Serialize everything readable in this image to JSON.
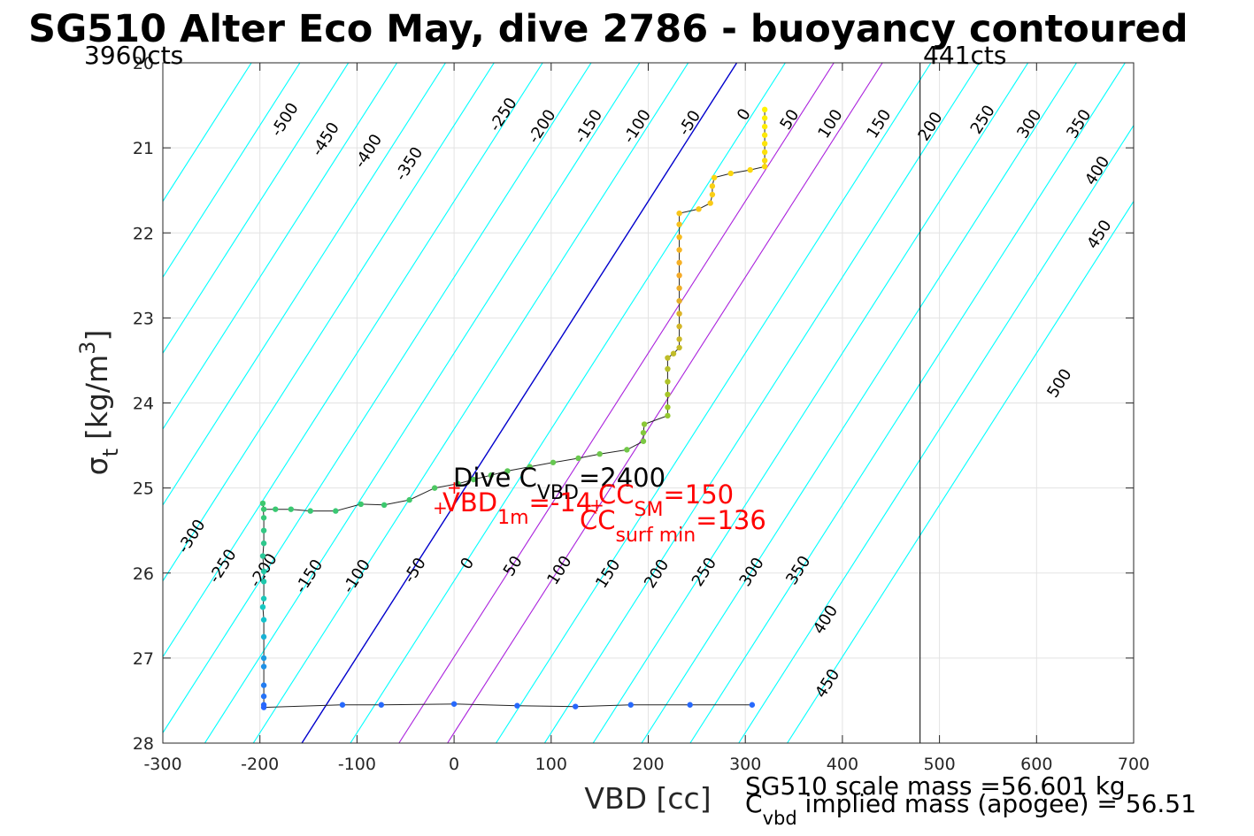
{
  "chart_data": {
    "type": "scatter",
    "title": "SG510 Alter Eco May, dive 2786 - buoyancy contoured",
    "xlabel": "VBD [cc]",
    "ylabel": {
      "sigma": "σ",
      "sub": "t",
      "main": "[kg/m",
      "sup": "3",
      "close": "]"
    },
    "xlim": [
      -300,
      700
    ],
    "ylim": [
      20,
      28
    ],
    "y_reversed": true,
    "grid": true,
    "x_ticks": [
      -300,
      -200,
      -100,
      0,
      100,
      200,
      300,
      400,
      500,
      600,
      700
    ],
    "y_ticks": [
      20,
      21,
      22,
      23,
      24,
      25,
      26,
      27,
      28
    ],
    "counts": {
      "left": "3960cts",
      "right": "441cts",
      "vline_x": 480
    },
    "contours": {
      "slope_cc_per_unit": -56,
      "ref_sigma": 25.2,
      "x_at_ref_zero": 0,
      "spacing": 50,
      "levels": [
        -500,
        -450,
        -400,
        -350,
        -300,
        -250,
        -200,
        -150,
        -100,
        -50,
        0,
        50,
        100,
        150,
        200,
        250,
        300,
        350,
        400,
        450,
        500
      ],
      "colors": {
        "normal": "#00ffff",
        "zero": "#0000cc",
        "sm": "#aa22dd"
      },
      "sm_levels": [
        100,
        150
      ]
    },
    "contour_labels_upper": [
      {
        "text": "-500",
        "x": -170,
        "y": 20.7
      },
      {
        "text": "-450",
        "x": -128,
        "y": 20.93
      },
      {
        "text": "-400",
        "x": -84,
        "y": 21.07
      },
      {
        "text": "-350",
        "x": -42,
        "y": 21.22
      },
      {
        "text": "-250",
        "x": 55,
        "y": 20.64
      },
      {
        "text": "-200",
        "x": 95,
        "y": 20.78
      },
      {
        "text": "-150",
        "x": 143,
        "y": 20.78
      },
      {
        "text": "-100",
        "x": 193,
        "y": 20.78
      },
      {
        "text": "-50",
        "x": 247,
        "y": 20.74
      },
      {
        "text": "0",
        "x": 303,
        "y": 20.64
      },
      {
        "text": "50",
        "x": 350,
        "y": 20.7
      },
      {
        "text": "100",
        "x": 392,
        "y": 20.75
      },
      {
        "text": "150",
        "x": 442,
        "y": 20.75
      },
      {
        "text": "200",
        "x": 495,
        "y": 20.78
      },
      {
        "text": "250",
        "x": 549,
        "y": 20.7
      },
      {
        "text": "300",
        "x": 597,
        "y": 20.75
      },
      {
        "text": "350",
        "x": 648,
        "y": 20.75
      },
      {
        "text": "400",
        "x": 667,
        "y": 21.3
      },
      {
        "text": "450",
        "x": 669,
        "y": 22.05
      },
      {
        "text": "500",
        "x": 628,
        "y": 23.8
      }
    ],
    "contour_labels_lower": [
      {
        "text": "-300",
        "x": -266,
        "y": 25.6
      },
      {
        "text": "-250",
        "x": -234,
        "y": 25.95
      },
      {
        "text": "-200",
        "x": -192,
        "y": 26.0
      },
      {
        "text": "-150",
        "x": -145,
        "y": 26.07
      },
      {
        "text": "-100",
        "x": -96,
        "y": 26.07
      },
      {
        "text": "-50",
        "x": -36,
        "y": 26.0
      },
      {
        "text": "0",
        "x": 18,
        "y": 25.92
      },
      {
        "text": "50",
        "x": 65,
        "y": 25.95
      },
      {
        "text": "100",
        "x": 113,
        "y": 26.0
      },
      {
        "text": "150",
        "x": 163,
        "y": 26.04
      },
      {
        "text": "200",
        "x": 213,
        "y": 26.04
      },
      {
        "text": "250",
        "x": 262,
        "y": 26.02
      },
      {
        "text": "300",
        "x": 311,
        "y": 26.02
      },
      {
        "text": "350",
        "x": 359,
        "y": 26.0
      },
      {
        "text": "400",
        "x": 387,
        "y": 26.58
      },
      {
        "text": "450",
        "x": 389,
        "y": 27.33
      }
    ],
    "profile": [
      {
        "x": 320,
        "y": 20.55
      },
      {
        "x": 320,
        "y": 20.65
      },
      {
        "x": 320,
        "y": 20.75
      },
      {
        "x": 320,
        "y": 20.85
      },
      {
        "x": 320,
        "y": 20.95
      },
      {
        "x": 320,
        "y": 21.05
      },
      {
        "x": 320,
        "y": 21.15
      },
      {
        "x": 320,
        "y": 21.22
      },
      {
        "x": 305,
        "y": 21.26
      },
      {
        "x": 285,
        "y": 21.3
      },
      {
        "x": 268,
        "y": 21.35
      },
      {
        "x": 266,
        "y": 21.45
      },
      {
        "x": 266,
        "y": 21.55
      },
      {
        "x": 264,
        "y": 21.65
      },
      {
        "x": 252,
        "y": 21.72
      },
      {
        "x": 232,
        "y": 21.77
      },
      {
        "x": 232,
        "y": 21.9
      },
      {
        "x": 232,
        "y": 22.05
      },
      {
        "x": 232,
        "y": 22.2
      },
      {
        "x": 232,
        "y": 22.35
      },
      {
        "x": 232,
        "y": 22.5
      },
      {
        "x": 232,
        "y": 22.65
      },
      {
        "x": 232,
        "y": 22.8
      },
      {
        "x": 232,
        "y": 22.95
      },
      {
        "x": 232,
        "y": 23.1
      },
      {
        "x": 232,
        "y": 23.25
      },
      {
        "x": 232,
        "y": 23.35
      },
      {
        "x": 226,
        "y": 23.42
      },
      {
        "x": 220,
        "y": 23.47
      },
      {
        "x": 220,
        "y": 23.6
      },
      {
        "x": 220,
        "y": 23.75
      },
      {
        "x": 220,
        "y": 23.9
      },
      {
        "x": 220,
        "y": 24.05
      },
      {
        "x": 220,
        "y": 24.15
      },
      {
        "x": 196,
        "y": 24.25
      },
      {
        "x": 195,
        "y": 24.35
      },
      {
        "x": 195,
        "y": 24.45
      },
      {
        "x": 178,
        "y": 24.55
      },
      {
        "x": 150,
        "y": 24.6
      },
      {
        "x": 128,
        "y": 24.65
      },
      {
        "x": 102,
        "y": 24.7
      },
      {
        "x": 78,
        "y": 24.75
      },
      {
        "x": 55,
        "y": 24.8
      },
      {
        "x": 38,
        "y": 24.85
      },
      {
        "x": 20,
        "y": 24.9
      },
      {
        "x": 4,
        "y": 24.95
      },
      {
        "x": -20,
        "y": 25.0
      },
      {
        "x": -46,
        "y": 25.14
      },
      {
        "x": -72,
        "y": 25.2
      },
      {
        "x": -96,
        "y": 25.19
      },
      {
        "x": -122,
        "y": 25.27
      },
      {
        "x": -148,
        "y": 25.27
      },
      {
        "x": -168,
        "y": 25.25
      },
      {
        "x": -184,
        "y": 25.25
      },
      {
        "x": -196,
        "y": 25.25
      },
      {
        "x": -197,
        "y": 25.18
      },
      {
        "x": -196,
        "y": 25.35
      },
      {
        "x": -196,
        "y": 25.5
      },
      {
        "x": -196,
        "y": 25.65
      },
      {
        "x": -197,
        "y": 25.8
      },
      {
        "x": -196,
        "y": 25.98
      },
      {
        "x": -196,
        "y": 26.1
      },
      {
        "x": -196,
        "y": 26.3
      },
      {
        "x": -197,
        "y": 26.4
      },
      {
        "x": -196,
        "y": 26.55
      },
      {
        "x": -196,
        "y": 26.75
      },
      {
        "x": -196,
        "y": 27.0
      },
      {
        "x": -196,
        "y": 27.1
      },
      {
        "x": -196,
        "y": 27.32
      },
      {
        "x": -196,
        "y": 27.45
      },
      {
        "x": -196,
        "y": 27.55
      },
      {
        "x": -196,
        "y": 27.58
      },
      {
        "x": -115,
        "y": 27.55
      },
      {
        "x": -75,
        "y": 27.55
      },
      {
        "x": 0,
        "y": 27.54
      },
      {
        "x": 65,
        "y": 27.56
      },
      {
        "x": 125,
        "y": 27.57
      },
      {
        "x": 182,
        "y": 27.55
      },
      {
        "x": 243,
        "y": 27.55
      },
      {
        "x": 307,
        "y": 27.55
      }
    ],
    "annotations": {
      "dive_c_vbd": {
        "prefix": "Dive C",
        "sub": "VBD",
        "suffix": "=2400"
      },
      "vbd_1m": {
        "prefix": "VBD",
        "sub": "1m",
        "suffix": "=-14"
      },
      "cc_sm": {
        "prefix": "CC",
        "sub": "SM",
        "suffix": "=150"
      },
      "cc_surf_min": {
        "prefix": "CC",
        "sub": "surf min",
        "suffix": "=136"
      }
    },
    "footer": {
      "scale_mass": "SG510 scale mass =56.601 kg",
      "implied_prefix": "C",
      "implied_sub": "vbd",
      "implied_suffix": " implied mass (apogee) = 56.51"
    }
  }
}
